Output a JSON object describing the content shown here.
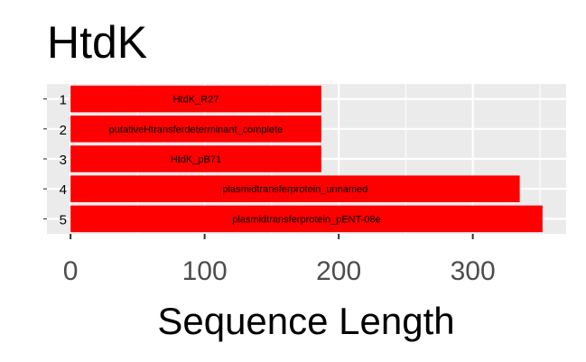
{
  "chart_data": {
    "type": "bar",
    "orientation": "horizontal",
    "title": "HtdK",
    "xlabel": "Sequence Length",
    "ylabel": "",
    "categories": [
      "1",
      "2",
      "3",
      "4",
      "5"
    ],
    "bar_labels": [
      "HtdK_R27",
      "putativeHtransferdeterminant_complete",
      "HtdK_pB71",
      "plasmidtransferprotein_unnamed",
      "plasmidtransferprotein_pENT-08e"
    ],
    "values": [
      187,
      187,
      187,
      335,
      352
    ],
    "xlim": [
      -17.6,
      369.6
    ],
    "xticks": [
      0,
      100,
      200,
      300
    ],
    "grid": true,
    "legend": "none",
    "colors": {
      "bar": "#ff0000",
      "panel": "#ebebeb",
      "grid": "#ffffff",
      "tick_text": "#4d4d4d",
      "text": "#000000"
    }
  }
}
